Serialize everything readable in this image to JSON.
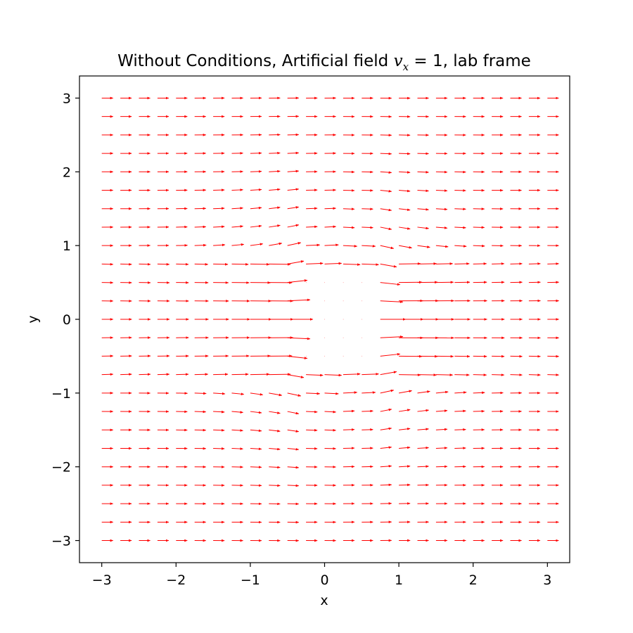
{
  "chart_data": {
    "type": "quiver",
    "title": {
      "prefix": "Without Conditions, Artificial field ",
      "math_var": "v",
      "math_sub": "x",
      "math_rest": " = 1",
      "suffix": ", lab frame"
    },
    "xlabel": "x",
    "ylabel": "y",
    "xlim": [
      -3.3,
      3.3
    ],
    "ylim": [
      -3.3,
      3.3
    ],
    "xticks": [
      -3,
      -2,
      -1,
      0,
      1,
      2,
      3
    ],
    "yticks": [
      -3,
      -2,
      -1,
      0,
      1,
      2,
      3
    ],
    "xtick_labels": [
      "−3",
      "−2",
      "−1",
      "0",
      "1",
      "2",
      "3"
    ],
    "ytick_labels": [
      "−3",
      "−2",
      "−1",
      "0",
      "1",
      "2",
      "3"
    ],
    "grid": false,
    "legend": "none",
    "arrow_color": "#ff0000",
    "field": {
      "x_min": -3,
      "x_max": 3,
      "nx": 25,
      "y_min": -3,
      "y_max": 3,
      "ny": 25,
      "obstacle": {
        "x": [
          -0.5,
          0.75
        ],
        "y": [
          -0.75,
          0.75
        ]
      },
      "free_stream": [
        1,
        0
      ]
    }
  }
}
